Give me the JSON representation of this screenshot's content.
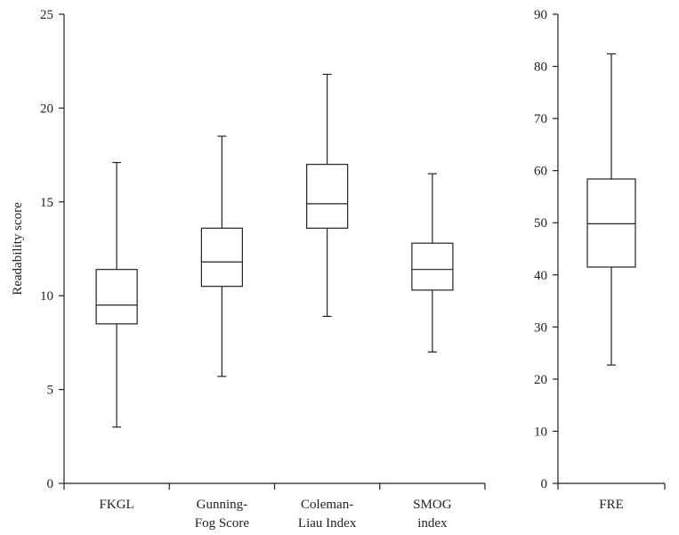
{
  "chart_data": [
    {
      "type": "box",
      "ylabel": "Readability score",
      "ylim": [
        0,
        25
      ],
      "yticks": [
        0,
        5,
        10,
        15,
        20,
        25
      ],
      "grid": false,
      "categories": [
        [
          "FKGL"
        ],
        [
          "Gunning-",
          "Fog Score"
        ],
        [
          "Coleman-",
          "Liau Index"
        ],
        [
          "SMOG",
          "index"
        ]
      ],
      "boxes": [
        {
          "min": 3.0,
          "q1": 8.5,
          "median": 9.5,
          "q3": 11.4,
          "max": 17.1
        },
        {
          "min": 5.7,
          "q1": 10.5,
          "median": 11.8,
          "q3": 13.6,
          "max": 18.5
        },
        {
          "min": 8.9,
          "q1": 13.6,
          "median": 14.9,
          "q3": 17.0,
          "max": 21.8
        },
        {
          "min": 7.0,
          "q1": 10.3,
          "median": 11.4,
          "q3": 12.8,
          "max": 16.5
        }
      ]
    },
    {
      "type": "box",
      "ylabel": "",
      "ylim": [
        0,
        90
      ],
      "yticks": [
        0,
        10,
        20,
        30,
        40,
        50,
        60,
        70,
        80,
        90
      ],
      "grid": false,
      "categories": [
        [
          "FRE"
        ]
      ],
      "boxes": [
        {
          "min": 22.7,
          "q1": 41.5,
          "median": 49.8,
          "q3": 58.4,
          "max": 82.4
        }
      ]
    }
  ]
}
